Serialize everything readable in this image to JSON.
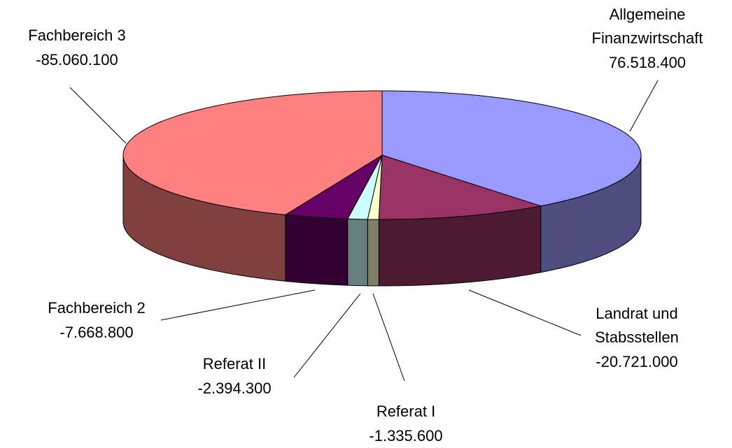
{
  "chart_data": {
    "type": "pie3d",
    "categories": [
      "Allgemeine\nFinanzwirtschaft",
      "Landrat und\nStabsstellen",
      "Referat I",
      "Referat II",
      "Fachbereich 2",
      "Fachbereich 3"
    ],
    "values": [
      76518400,
      -20721000,
      -1335600,
      -2394300,
      -7668800,
      -85060100
    ],
    "value_labels": [
      "76.518.400",
      "-20.721.000",
      "-1.335.600",
      "-2.394.300",
      "-7.668.800",
      "-85.060.100"
    ],
    "colors": [
      "#9999ff",
      "#993366",
      "#ffffcc",
      "#ccffff",
      "#660066",
      "#ff8080"
    ]
  }
}
